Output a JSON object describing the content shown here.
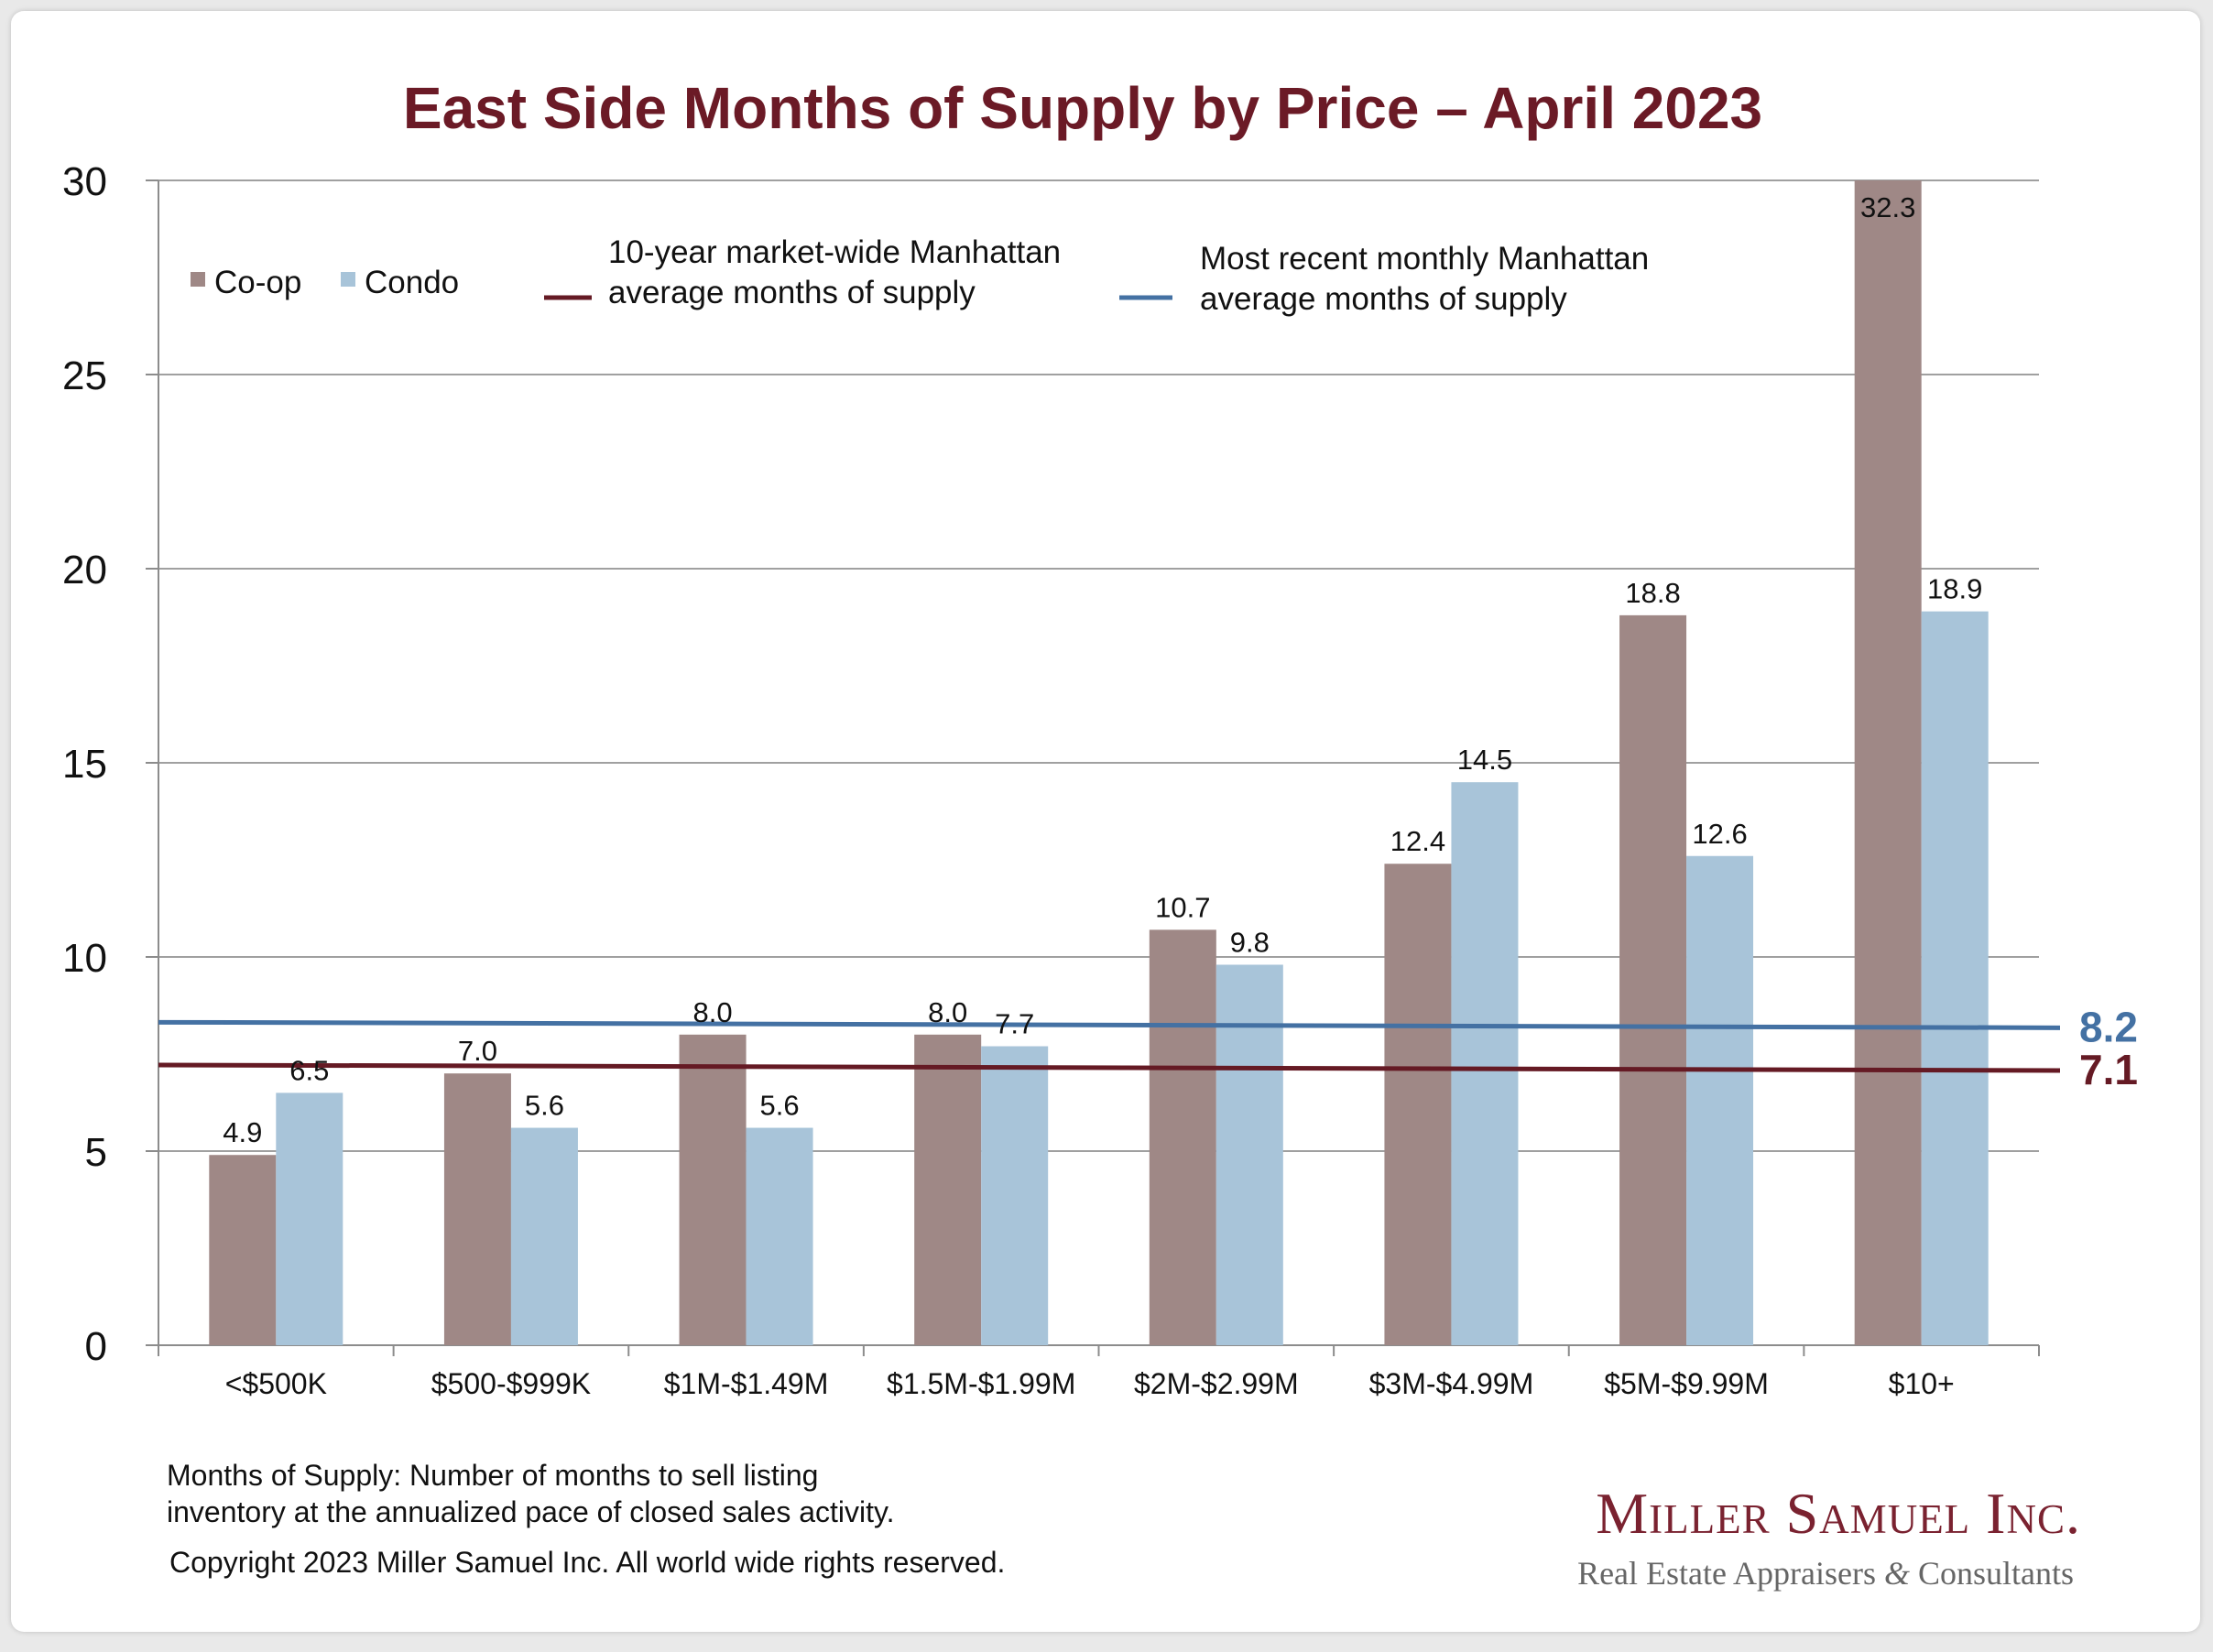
{
  "chart_data": {
    "type": "bar",
    "title": "East Side Months of Supply by Price – April 2023",
    "categories": [
      "<$500K",
      "$500-$999K",
      "$1M-$1.49M",
      "$1.5M-$1.99M",
      "$2M-$2.99M",
      "$3M-$4.99M",
      "$5M-$9.99M",
      "$10+"
    ],
    "series": [
      {
        "name": "Co-op",
        "color": "#9f8886",
        "values": [
          4.9,
          7.0,
          8.0,
          8.0,
          10.7,
          12.4,
          18.8,
          32.3
        ],
        "labels": [
          "4.9",
          "7.0",
          "8.0",
          "8.0",
          "10.7",
          "12.4",
          "18.8",
          "32.3"
        ]
      },
      {
        "name": "Condo",
        "color": "#a8c4d9",
        "values": [
          6.5,
          5.6,
          5.6,
          7.7,
          9.8,
          14.5,
          12.6,
          18.9
        ],
        "labels": [
          "6.5",
          "5.6",
          "5.6",
          "7.7",
          "9.8",
          "14.5",
          "12.6",
          "18.9"
        ]
      }
    ],
    "reference_lines": [
      {
        "value": 8.2,
        "label": "8.2",
        "color": "#4471a3",
        "legend": [
          "Most recent monthly Manhattan",
          "average months of supply"
        ]
      },
      {
        "value": 7.1,
        "label": "7.1",
        "color": "#651a24",
        "legend": [
          "10-year  market-wide Manhattan",
          "average months of supply"
        ]
      }
    ],
    "ylim": [
      0,
      30
    ],
    "yticks": [
      0,
      5,
      10,
      15,
      20,
      25,
      30
    ],
    "grid": true,
    "legend_position": "top-left"
  },
  "colors": {
    "title": "#6b1a26"
  },
  "footnote": {
    "line1": "Months of Supply: Number of months to sell listing",
    "line2": "inventory at the annualized pace of closed sales activity.",
    "copyright": "Copyright 2023 Miller Samuel Inc.  All world wide rights reserved."
  },
  "brand": {
    "name": "Miller Samuel Inc.",
    "tagline_a": "Real Estate Appraisers",
    "amp": "&",
    "tagline_b": "Consultants",
    "name_color": "#7a2230",
    "tagline_color": "#666666"
  }
}
